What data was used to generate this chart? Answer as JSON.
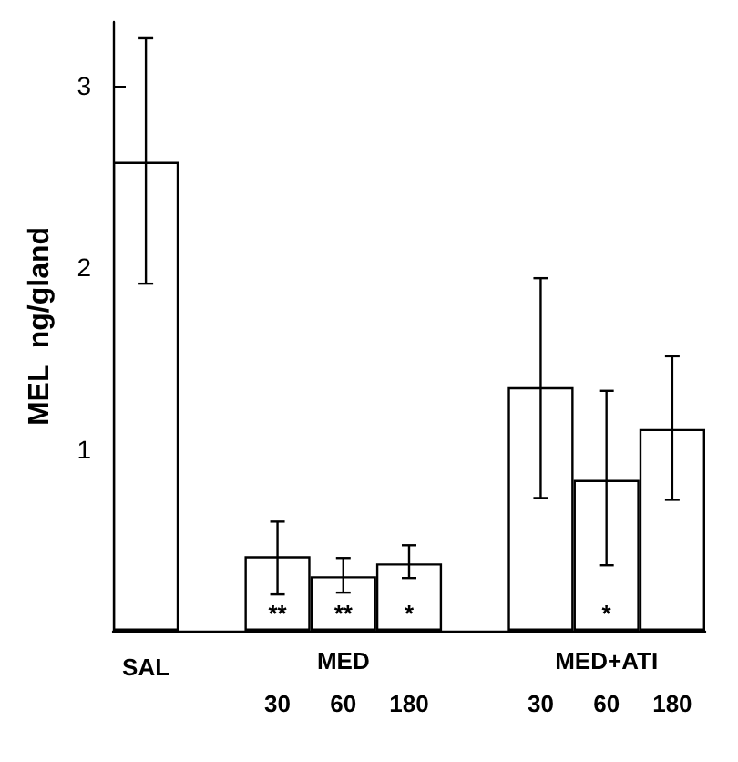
{
  "chart_data": {
    "type": "bar",
    "ylabel": "MEL  ng/gland",
    "categories": [
      "SAL",
      null,
      "30",
      "60",
      "180",
      null,
      "30",
      "60",
      "180"
    ],
    "series": [
      {
        "color": "#ffffff",
        "values": [
          2.58,
          null,
          0.41,
          0.3,
          0.37,
          null,
          1.34,
          0.83,
          1.11
        ],
        "errors": [
          [
            1.91,
            3.26
          ],
          null,
          [
            0.2,
            0.6
          ],
          [
            0.21,
            0.4
          ],
          [
            0.29,
            0.47
          ],
          null,
          [
            0.73,
            1.94
          ],
          [
            0.36,
            1.32
          ],
          [
            0.72,
            1.51
          ]
        ],
        "value_labels": [
          null,
          null,
          "**",
          "**",
          "*",
          null,
          null,
          "*",
          null
        ]
      }
    ],
    "annotations": [
      "MED",
      "MED+ATI"
    ],
    "ylim": [
      0,
      3.35
    ],
    "yticks": [
      {
        "value": 0.5,
        "label": null
      },
      1,
      {
        "value": 1.5,
        "label": null
      },
      2,
      {
        "value": 2.5,
        "label": null
      },
      3
    ],
    "grid": false
  }
}
